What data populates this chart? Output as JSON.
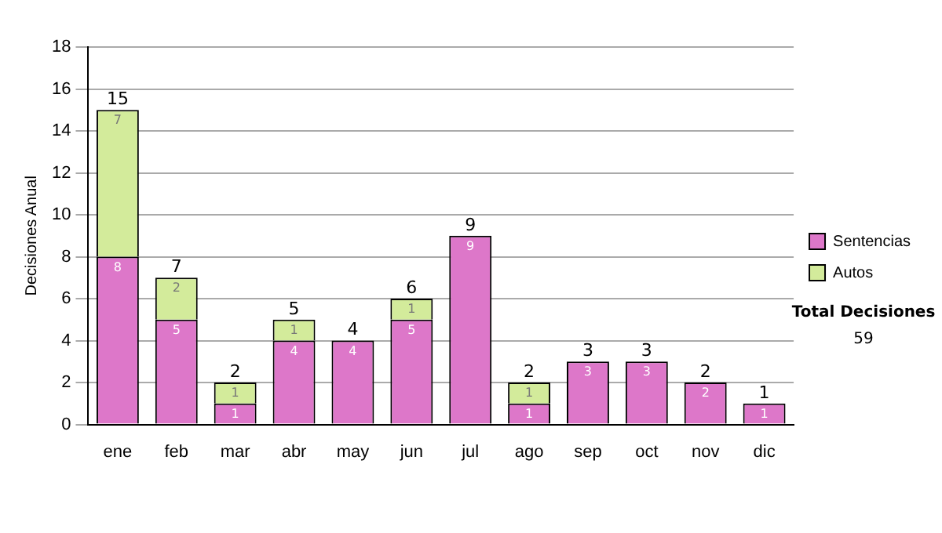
{
  "chart_data": {
    "type": "bar",
    "stacked": true,
    "ylabel": "Decisiones Anual",
    "categories": [
      "ene",
      "feb",
      "mar",
      "abr",
      "may",
      "jun",
      "jul",
      "ago",
      "sep",
      "oct",
      "nov",
      "dic"
    ],
    "series": [
      {
        "name": "Sentencias",
        "color": "#dd77c9",
        "values": [
          8,
          5,
          1,
          4,
          4,
          5,
          9,
          1,
          3,
          3,
          2,
          1
        ],
        "value_labels": [
          "8",
          "5",
          "1",
          "4",
          "4",
          "5",
          "9",
          "1",
          "3",
          "3",
          "2",
          "1"
        ]
      },
      {
        "name": "Autos",
        "color": "#d3eb9b",
        "values": [
          7,
          2,
          1,
          1,
          0,
          1,
          0,
          1,
          0,
          0,
          0,
          0
        ],
        "value_labels": [
          "7",
          "2",
          "1",
          "1",
          null,
          "1",
          null,
          "1",
          null,
          null,
          null,
          null
        ]
      }
    ],
    "totals": [
      "15",
      "7",
      "2",
      "5",
      "4",
      "6",
      "9",
      "2",
      "3",
      "3",
      "2",
      "1"
    ],
    "ylim": [
      0,
      18
    ],
    "yticks": [
      0,
      2,
      4,
      6,
      8,
      10,
      12,
      14,
      16,
      18
    ],
    "grid": "y",
    "legend": "right",
    "annotations": [
      "Total Decisiones",
      "59"
    ]
  }
}
